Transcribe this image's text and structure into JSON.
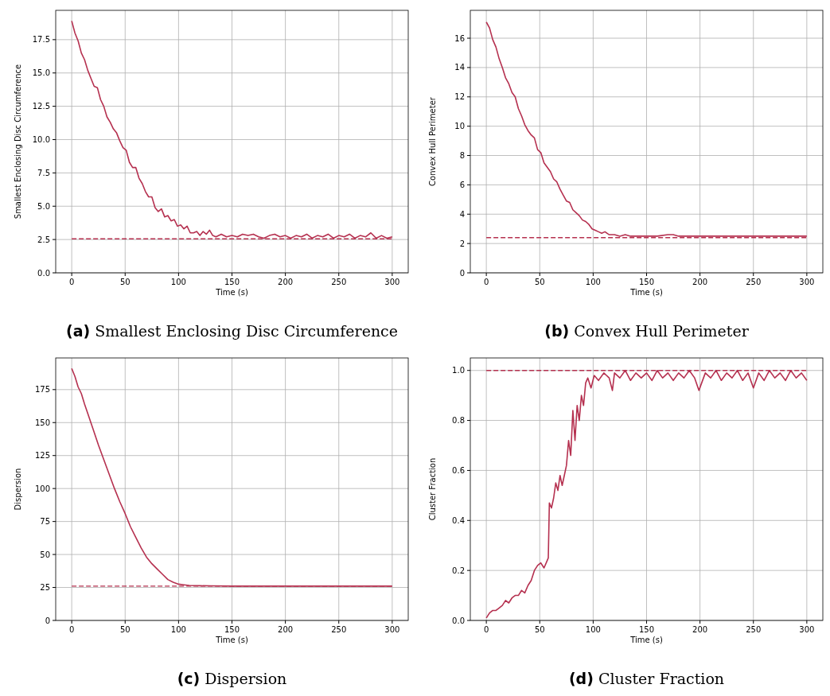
{
  "chart_data": [
    {
      "type": "line",
      "title": "(a) Smallest Enclosing Disc Circumference",
      "xlabel": "Time (s)",
      "ylabel": "Smallest Enclosing Disc Circumference",
      "xlim": [
        -15,
        315
      ],
      "xticks": [
        0,
        50,
        100,
        150,
        200,
        250,
        300
      ],
      "ylim": [
        0,
        19.7
      ],
      "yticks": [
        {
          "value": 0,
          "label": "0.0"
        },
        2.5,
        {
          "value": 5,
          "label": "5.0"
        },
        7.5,
        {
          "value": 10,
          "label": "10.0"
        },
        12.5,
        {
          "value": 15,
          "label": "15.0"
        },
        17.5
      ],
      "grid": true,
      "x": [
        0,
        3,
        6,
        9,
        12,
        15,
        18,
        21,
        24,
        27,
        30,
        33,
        36,
        39,
        42,
        45,
        48,
        51,
        54,
        57,
        60,
        63,
        66,
        69,
        72,
        75,
        78,
        81,
        84,
        87,
        90,
        93,
        96,
        99,
        102,
        105,
        108,
        111,
        114,
        117,
        120,
        123,
        126,
        129,
        132,
        135,
        140,
        145,
        150,
        155,
        160,
        165,
        170,
        175,
        180,
        185,
        190,
        195,
        200,
        205,
        210,
        215,
        220,
        225,
        230,
        235,
        240,
        245,
        250,
        255,
        260,
        265,
        270,
        275,
        280,
        285,
        290,
        295,
        300
      ],
      "series": [
        {
          "color": "#b5304f",
          "values": [
            18.9,
            18.0,
            17.4,
            16.5,
            16.0,
            15.2,
            14.6,
            14.0,
            13.9,
            13.0,
            12.5,
            11.7,
            11.3,
            10.8,
            10.5,
            9.9,
            9.4,
            9.2,
            8.3,
            7.9,
            7.9,
            7.1,
            6.7,
            6.1,
            5.7,
            5.7,
            4.9,
            4.6,
            4.8,
            4.2,
            4.3,
            3.9,
            4.0,
            3.5,
            3.6,
            3.3,
            3.5,
            3.0,
            3.0,
            3.1,
            2.8,
            3.1,
            2.9,
            3.2,
            2.8,
            2.7,
            2.9,
            2.7,
            2.8,
            2.7,
            2.9,
            2.8,
            2.9,
            2.7,
            2.6,
            2.8,
            2.9,
            2.7,
            2.8,
            2.6,
            2.8,
            2.7,
            2.9,
            2.6,
            2.8,
            2.7,
            2.9,
            2.6,
            2.8,
            2.7,
            2.9,
            2.6,
            2.8,
            2.7,
            3.0,
            2.6,
            2.8,
            2.6,
            2.7
          ]
        }
      ],
      "ref_lines": [
        {
          "axis": "y",
          "value": 2.55,
          "color": "#b5304f",
          "line_style": "dashed"
        }
      ]
    },
    {
      "type": "line",
      "title": "(b) Convex Hull Perimeter",
      "xlabel": "Time (s)",
      "ylabel": "Convex Hull Perimeter",
      "xlim": [
        -15,
        315
      ],
      "xticks": [
        0,
        50,
        100,
        150,
        200,
        250,
        300
      ],
      "ylim": [
        0,
        17.9
      ],
      "yticks": [
        0,
        2,
        4,
        6,
        8,
        10,
        12,
        14,
        16
      ],
      "grid": true,
      "x": [
        0,
        3,
        6,
        9,
        12,
        15,
        18,
        21,
        24,
        27,
        30,
        33,
        36,
        39,
        42,
        45,
        48,
        51,
        54,
        57,
        60,
        63,
        66,
        69,
        72,
        75,
        78,
        81,
        84,
        87,
        90,
        93,
        96,
        99,
        102,
        105,
        108,
        111,
        115,
        120,
        125,
        130,
        135,
        140,
        150,
        160,
        170,
        175,
        180,
        190,
        200,
        210,
        220,
        230,
        240,
        250,
        260,
        270,
        280,
        290,
        300
      ],
      "series": [
        {
          "color": "#b5304f",
          "values": [
            17.1,
            16.7,
            15.9,
            15.4,
            14.6,
            14.0,
            13.3,
            12.9,
            12.3,
            12.0,
            11.2,
            10.7,
            10.1,
            9.7,
            9.4,
            9.2,
            8.4,
            8.2,
            7.5,
            7.2,
            6.9,
            6.4,
            6.2,
            5.7,
            5.3,
            4.9,
            4.8,
            4.3,
            4.1,
            3.9,
            3.6,
            3.5,
            3.3,
            3.0,
            2.9,
            2.8,
            2.7,
            2.8,
            2.6,
            2.6,
            2.5,
            2.6,
            2.5,
            2.5,
            2.5,
            2.5,
            2.6,
            2.6,
            2.5,
            2.5,
            2.5,
            2.5,
            2.5,
            2.5,
            2.5,
            2.5,
            2.5,
            2.5,
            2.5,
            2.5,
            2.5
          ]
        }
      ],
      "ref_lines": [
        {
          "axis": "y",
          "value": 2.4,
          "color": "#b5304f",
          "line_style": "dashed"
        }
      ]
    },
    {
      "type": "line",
      "title": "(c) Dispersion",
      "xlabel": "Time (s)",
      "ylabel": "Dispersion",
      "xlim": [
        -15,
        315
      ],
      "xticks": [
        0,
        50,
        100,
        150,
        200,
        250,
        300
      ],
      "ylim": [
        0,
        199
      ],
      "yticks": [
        0,
        25,
        50,
        75,
        100,
        125,
        150,
        175
      ],
      "grid": true,
      "x": [
        0,
        3,
        6,
        9,
        12,
        15,
        20,
        25,
        30,
        35,
        40,
        45,
        50,
        55,
        60,
        65,
        70,
        75,
        80,
        85,
        90,
        95,
        100,
        105,
        110,
        120,
        130,
        150,
        200,
        250,
        300
      ],
      "series": [
        {
          "color": "#b5304f",
          "values": [
            191,
            185,
            177,
            172,
            164,
            157,
            145,
            133,
            122,
            111,
            100,
            90,
            81,
            71,
            63,
            55,
            48,
            43,
            39,
            35,
            31,
            29,
            27.5,
            27,
            26.5,
            26.3,
            26.2,
            26,
            26,
            26,
            26
          ]
        }
      ],
      "ref_lines": [
        {
          "axis": "y",
          "value": 26,
          "color": "#b5304f",
          "line_style": "dashed"
        }
      ]
    },
    {
      "type": "line",
      "title": "(d) Cluster Fraction",
      "xlabel": "Time (s)",
      "ylabel": "Cluster Fraction",
      "xlim": [
        -15,
        315
      ],
      "xticks": [
        0,
        50,
        100,
        150,
        200,
        250,
        300
      ],
      "ylim": [
        0,
        1.05
      ],
      "yticks": [
        {
          "value": 0,
          "label": "0.0"
        },
        0.2,
        0.4,
        0.6,
        0.8,
        {
          "value": 1,
          "label": "1.0"
        }
      ],
      "grid": true,
      "x": [
        0,
        3,
        6,
        9,
        12,
        15,
        18,
        21,
        24,
        27,
        30,
        33,
        36,
        39,
        42,
        45,
        48,
        51,
        54,
        57,
        58,
        59,
        61,
        63,
        65,
        67,
        69,
        71,
        73,
        75,
        77,
        79,
        81,
        83,
        85,
        87,
        89,
        91,
        93,
        95,
        98,
        101,
        105,
        110,
        115,
        118,
        120,
        125,
        130,
        135,
        140,
        145,
        150,
        155,
        160,
        165,
        170,
        175,
        180,
        185,
        190,
        195,
        199,
        205,
        210,
        215,
        220,
        225,
        230,
        235,
        240,
        245,
        250,
        255,
        260,
        265,
        270,
        275,
        280,
        285,
        290,
        295,
        300
      ],
      "series": [
        {
          "color": "#b5304f",
          "values": [
            0.01,
            0.03,
            0.04,
            0.04,
            0.05,
            0.06,
            0.08,
            0.07,
            0.09,
            0.1,
            0.1,
            0.12,
            0.11,
            0.14,
            0.16,
            0.2,
            0.22,
            0.23,
            0.21,
            0.24,
            0.25,
            0.47,
            0.45,
            0.49,
            0.55,
            0.52,
            0.58,
            0.54,
            0.58,
            0.62,
            0.72,
            0.66,
            0.84,
            0.72,
            0.86,
            0.8,
            0.9,
            0.86,
            0.95,
            0.97,
            0.93,
            0.98,
            0.96,
            0.99,
            0.97,
            0.92,
            0.99,
            0.97,
            1.0,
            0.96,
            0.99,
            0.97,
            0.99,
            0.96,
            1.0,
            0.97,
            0.99,
            0.96,
            0.99,
            0.97,
            1.0,
            0.97,
            0.92,
            0.99,
            0.97,
            1.0,
            0.96,
            0.99,
            0.97,
            1.0,
            0.96,
            0.99,
            0.93,
            0.99,
            0.96,
            1.0,
            0.97,
            0.99,
            0.96,
            1.0,
            0.97,
            0.99,
            0.96
          ]
        }
      ],
      "ref_lines": [
        {
          "axis": "y",
          "value": 1.0,
          "color": "#b5304f",
          "line_style": "dashed"
        }
      ]
    }
  ]
}
